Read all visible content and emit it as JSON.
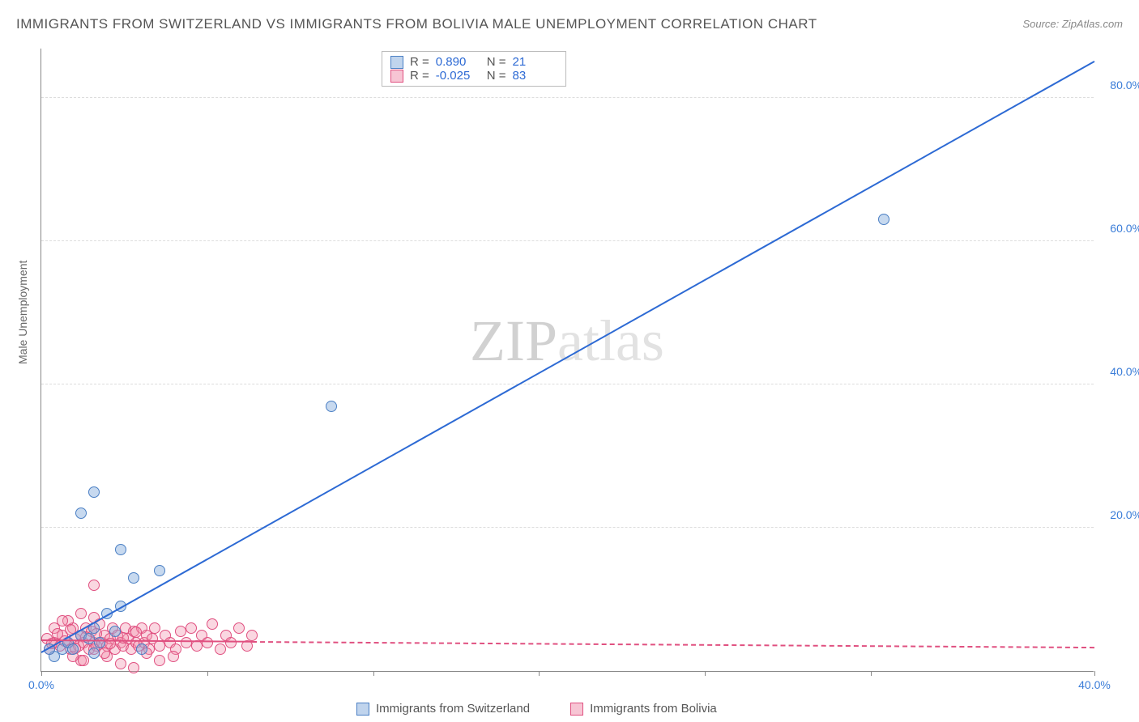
{
  "title": "IMMIGRANTS FROM SWITZERLAND VS IMMIGRANTS FROM BOLIVIA MALE UNEMPLOYMENT CORRELATION CHART",
  "source": "Source: ZipAtlas.com",
  "ylabel": "Male Unemployment",
  "watermark": "ZIPatlas",
  "chart": {
    "type": "scatter",
    "xlim": [
      0,
      40
    ],
    "ylim": [
      0,
      87
    ],
    "xticks": [
      0,
      40
    ],
    "xtick_marks": [
      0,
      6.3,
      12.6,
      18.9,
      25.2,
      31.5,
      40
    ],
    "yticks": [
      20,
      40,
      60,
      80
    ],
    "background_color": "#ffffff",
    "grid_color": "#dddddd",
    "marker_radius": 7,
    "series": {
      "switzerland": {
        "label": "Immigrants from Switzerland",
        "color_fill": "rgba(130,170,220,0.45)",
        "color_stroke": "#4a7fc4",
        "regression": {
          "x1": 0,
          "y1": 2.5,
          "x2": 40,
          "y2": 85,
          "color": "#2d6ad4",
          "style": "solid"
        },
        "stats": {
          "R": "0.890",
          "N": "21"
        },
        "points": [
          [
            0.5,
            2
          ],
          [
            0.8,
            3
          ],
          [
            1.0,
            4
          ],
          [
            1.2,
            3
          ],
          [
            1.5,
            5
          ],
          [
            2.0,
            6
          ],
          [
            2.2,
            4
          ],
          [
            2.5,
            8
          ],
          [
            3.0,
            9
          ],
          [
            3.5,
            13
          ],
          [
            4.5,
            14
          ],
          [
            1.5,
            22
          ],
          [
            2.0,
            25
          ],
          [
            3.0,
            17
          ],
          [
            2.0,
            2.5
          ],
          [
            3.8,
            3
          ],
          [
            11.0,
            37
          ],
          [
            32.0,
            63
          ],
          [
            0.3,
            3
          ],
          [
            1.8,
            4.5
          ],
          [
            2.8,
            5.5
          ]
        ]
      },
      "bolivia": {
        "label": "Immigrants from Bolivia",
        "color_fill": "rgba(240,140,170,0.35)",
        "color_stroke": "#e05080",
        "regression_solid": {
          "x1": 0,
          "y1": 4.2,
          "x2": 8,
          "y2": 4.0,
          "color": "#e05080"
        },
        "regression_dash": {
          "x1": 8,
          "y1": 4.0,
          "x2": 40,
          "y2": 3.2,
          "color": "#e05080"
        },
        "stats": {
          "R": "-0.025",
          "N": "83"
        },
        "points": [
          [
            0.3,
            3
          ],
          [
            0.5,
            4
          ],
          [
            0.7,
            3.5
          ],
          [
            0.8,
            5
          ],
          [
            1.0,
            4
          ],
          [
            1.1,
            3
          ],
          [
            1.2,
            6
          ],
          [
            1.3,
            4.5
          ],
          [
            1.4,
            3.5
          ],
          [
            1.5,
            5
          ],
          [
            1.6,
            4
          ],
          [
            1.7,
            6
          ],
          [
            1.8,
            3
          ],
          [
            1.9,
            5.5
          ],
          [
            2.0,
            4
          ],
          [
            2.1,
            3.5
          ],
          [
            2.2,
            6.5
          ],
          [
            2.3,
            4
          ],
          [
            2.4,
            5
          ],
          [
            2.5,
            3.5
          ],
          [
            2.6,
            4.5
          ],
          [
            2.7,
            6
          ],
          [
            2.8,
            3
          ],
          [
            2.9,
            5
          ],
          [
            3.0,
            4
          ],
          [
            3.1,
            3.5
          ],
          [
            3.2,
            6
          ],
          [
            3.3,
            4.5
          ],
          [
            3.4,
            3
          ],
          [
            3.5,
            5.5
          ],
          [
            3.6,
            4
          ],
          [
            3.7,
            3.5
          ],
          [
            3.8,
            6
          ],
          [
            3.9,
            4
          ],
          [
            4.0,
            5
          ],
          [
            4.1,
            3
          ],
          [
            4.2,
            4.5
          ],
          [
            4.3,
            6
          ],
          [
            4.5,
            3.5
          ],
          [
            4.7,
            5
          ],
          [
            4.9,
            4
          ],
          [
            5.1,
            3
          ],
          [
            5.3,
            5.5
          ],
          [
            5.5,
            4
          ],
          [
            5.7,
            6
          ],
          [
            5.9,
            3.5
          ],
          [
            6.1,
            5
          ],
          [
            6.3,
            4
          ],
          [
            6.5,
            6.5
          ],
          [
            6.8,
            3
          ],
          [
            7.0,
            5
          ],
          [
            7.2,
            4
          ],
          [
            7.5,
            6
          ],
          [
            7.8,
            3.5
          ],
          [
            8.0,
            5
          ],
          [
            2.0,
            12
          ],
          [
            1.5,
            1.5
          ],
          [
            2.5,
            2
          ],
          [
            3.0,
            1
          ],
          [
            3.5,
            0.5
          ],
          [
            4.0,
            2.5
          ],
          [
            4.5,
            1.5
          ],
          [
            5.0,
            2
          ],
          [
            1.0,
            7
          ],
          [
            1.5,
            8
          ],
          [
            2.0,
            7.5
          ],
          [
            0.5,
            6
          ],
          [
            0.8,
            7
          ],
          [
            1.2,
            2
          ],
          [
            1.6,
            1.5
          ],
          [
            2.0,
            3
          ],
          [
            2.4,
            2.5
          ],
          [
            0.2,
            4.5
          ],
          [
            0.4,
            3.8
          ],
          [
            0.6,
            5.2
          ],
          [
            0.9,
            4.2
          ],
          [
            1.1,
            5.8
          ],
          [
            1.3,
            3.2
          ],
          [
            1.7,
            4.8
          ],
          [
            2.1,
            5.2
          ],
          [
            2.6,
            3.8
          ],
          [
            3.1,
            4.6
          ],
          [
            3.6,
            5.4
          ]
        ]
      }
    }
  },
  "stat_box": {
    "r_label": "R =",
    "n_label": "N ="
  }
}
